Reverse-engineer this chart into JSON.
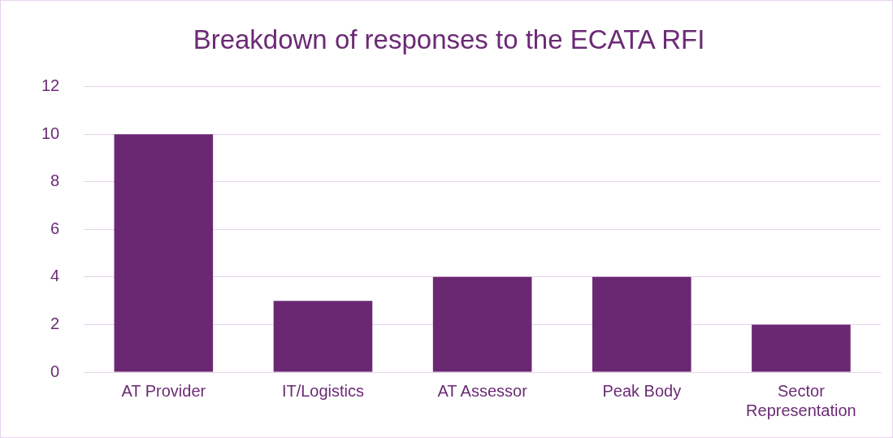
{
  "chart_data": {
    "type": "bar",
    "title": "Breakdown of responses to the ECATA RFI",
    "categories": [
      "AT Provider",
      "IT/Logistics",
      "AT Assessor",
      "Peak Body",
      "Sector Representation"
    ],
    "values": [
      10,
      3,
      4,
      4,
      2
    ],
    "color": "#6b2872",
    "ylim": [
      0,
      12
    ],
    "yticks": [
      0,
      2,
      4,
      6,
      8,
      10,
      12
    ],
    "grid": "y"
  }
}
